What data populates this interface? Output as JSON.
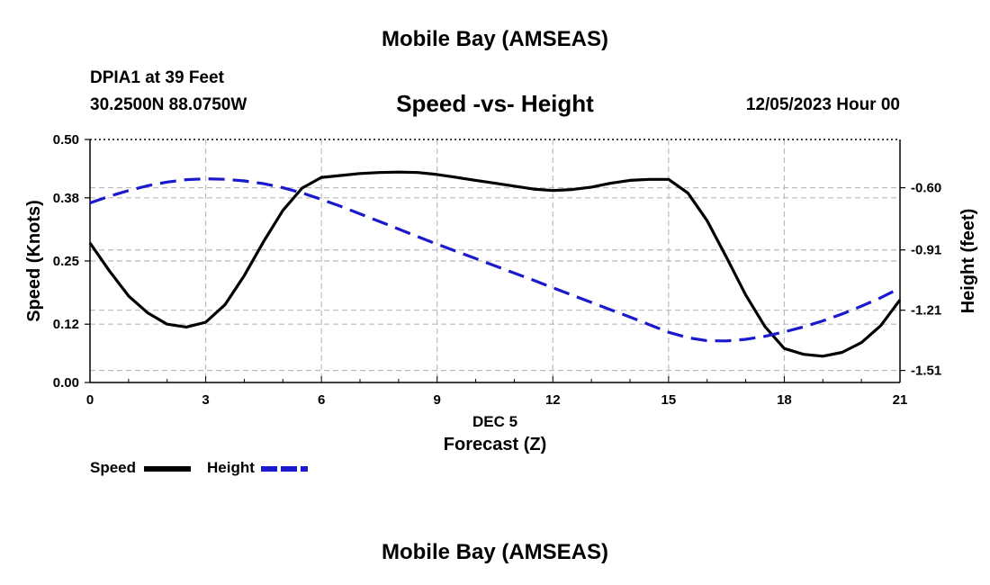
{
  "header": {
    "title": "Mobile Bay (AMSEAS)",
    "station": "DPIA1 at 39 Feet",
    "coords": "30.2500N  88.0750W",
    "subtitle": "Speed -vs- Height",
    "datetime": "12/05/2023 Hour 00"
  },
  "footer": {
    "title": "Mobile Bay (AMSEAS)"
  },
  "legend": {
    "speed_label": "Speed",
    "height_label": "Height"
  },
  "colors": {
    "speed": "#000000",
    "height": "#1a1acc",
    "grid": "#bbbbbb"
  },
  "chart_data": {
    "type": "line",
    "title": "Speed -vs- Height",
    "xlabel": "Forecast (Z)",
    "xlabel_date": "DEC 5",
    "ylabel_left": "Speed (Knots)",
    "ylabel_right": "Height (feet)",
    "xlim": [
      0,
      21
    ],
    "ylim_left": [
      0,
      0.5
    ],
    "ylim_right": [
      -1.57,
      -0.36
    ],
    "x_ticks": [
      "0",
      "3",
      "6",
      "9",
      "12",
      "15",
      "18",
      "21"
    ],
    "y_left_ticks": [
      "0.00",
      "0.12",
      "0.25",
      "0.38",
      "0.50"
    ],
    "y_right_ticks": [
      "-0.60",
      "-0.91",
      "-1.21",
      "-1.51"
    ],
    "y_right_tick_values": [
      -0.6,
      -0.91,
      -1.21,
      -1.51
    ],
    "grid": true,
    "series": [
      {
        "name": "Speed",
        "axis": "left",
        "style": "solid",
        "x": [
          0,
          0.5,
          1,
          1.5,
          2,
          2.5,
          3,
          3.5,
          4,
          4.5,
          5,
          5.5,
          6,
          6.5,
          7,
          7.5,
          8,
          8.5,
          9,
          9.5,
          10,
          10.5,
          11,
          11.5,
          12,
          12.5,
          13,
          13.5,
          14,
          14.5,
          15,
          15.5,
          16,
          16.5,
          17,
          17.5,
          18,
          18.5,
          19,
          19.5,
          20,
          20.5,
          21
        ],
        "values": [
          0.287,
          0.23,
          0.178,
          0.143,
          0.12,
          0.114,
          0.124,
          0.16,
          0.22,
          0.29,
          0.354,
          0.4,
          0.422,
          0.426,
          0.43,
          0.432,
          0.433,
          0.432,
          0.428,
          0.422,
          0.416,
          0.41,
          0.404,
          0.398,
          0.395,
          0.397,
          0.402,
          0.41,
          0.416,
          0.418,
          0.418,
          0.39,
          0.333,
          0.258,
          0.18,
          0.115,
          0.07,
          0.058,
          0.054,
          0.062,
          0.082,
          0.117,
          0.17
        ]
      },
      {
        "name": "Height",
        "axis": "right",
        "style": "dashed",
        "x": [
          0,
          0.5,
          1,
          1.5,
          2,
          2.5,
          3,
          3.5,
          4,
          4.5,
          5,
          5.5,
          6,
          6.5,
          7,
          7.5,
          8,
          8.5,
          9,
          9.5,
          10,
          10.5,
          11,
          11.5,
          12,
          12.5,
          13,
          13.5,
          14,
          14.5,
          15,
          15.5,
          16,
          16.5,
          17,
          17.5,
          18,
          18.5,
          19,
          19.5,
          20,
          20.5,
          21
        ],
        "values": [
          -0.676,
          -0.643,
          -0.614,
          -0.59,
          -0.572,
          -0.56,
          -0.556,
          -0.558,
          -0.566,
          -0.58,
          -0.6,
          -0.626,
          -0.658,
          -0.693,
          -0.73,
          -0.768,
          -0.806,
          -0.844,
          -0.881,
          -0.917,
          -0.953,
          -0.989,
          -1.025,
          -1.061,
          -1.098,
          -1.135,
          -1.171,
          -1.208,
          -1.244,
          -1.282,
          -1.32,
          -1.347,
          -1.362,
          -1.363,
          -1.355,
          -1.34,
          -1.318,
          -1.293,
          -1.263,
          -1.229,
          -1.19,
          -1.148,
          -1.1
        ]
      }
    ]
  }
}
